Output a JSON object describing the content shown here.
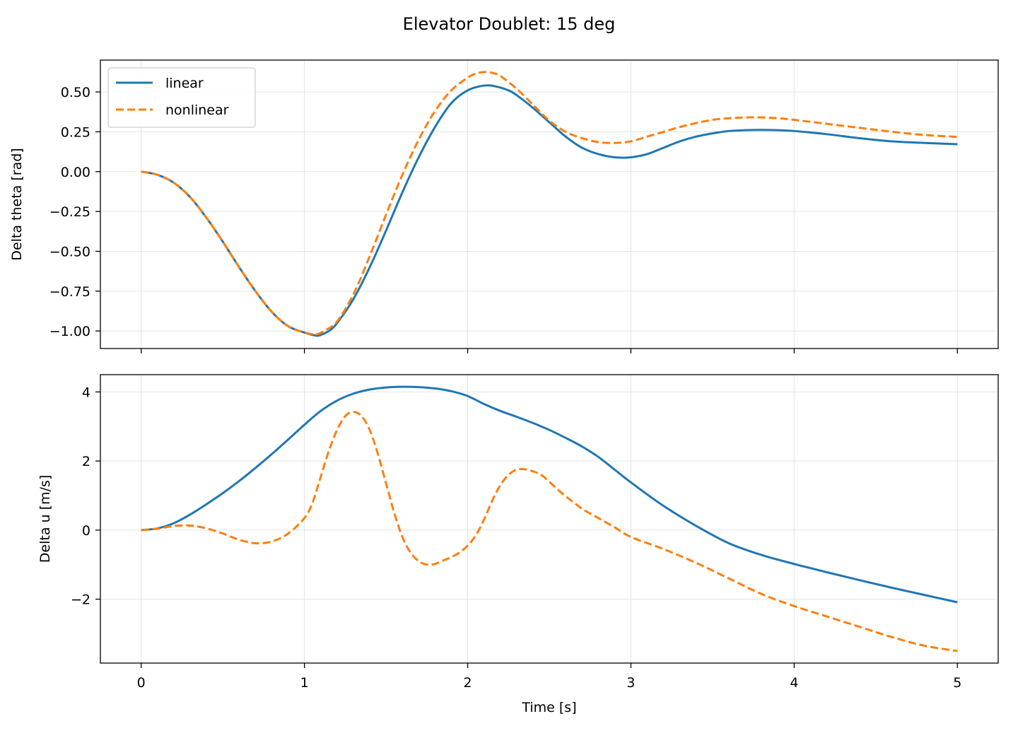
{
  "title": "Elevator Doublet: 15 deg",
  "colors": {
    "linear": "#1f77b4",
    "nonlinear": "#ff7f0e",
    "grid": "#e3e3e3"
  },
  "chart_data": [
    {
      "type": "line",
      "panel": "top",
      "xlabel": "",
      "ylabel": "Delta theta [rad]",
      "xlim": [
        -0.25,
        5.25
      ],
      "ylim": [
        -1.11,
        0.7
      ],
      "xticks": [
        0,
        1,
        2,
        3,
        4,
        5
      ],
      "yticks": [
        0.5,
        0.25,
        0.0,
        -0.25,
        -0.5,
        -0.75,
        -1.0
      ],
      "ytick_labels": [
        "0.50",
        "0.25",
        "0.00",
        "−0.25",
        "−0.50",
        "−0.75",
        "−1.00"
      ],
      "grid": true,
      "legend": "top-left",
      "series": [
        {
          "name": "linear",
          "style": "solid",
          "x": [
            0,
            0.1,
            0.2,
            0.3,
            0.4,
            0.5,
            0.6,
            0.7,
            0.8,
            0.9,
            1.0,
            1.05,
            1.08,
            1.1,
            1.15,
            1.2,
            1.3,
            1.4,
            1.5,
            1.6,
            1.7,
            1.8,
            1.9,
            2.0,
            2.1,
            2.17,
            2.25,
            2.3,
            2.4,
            2.5,
            2.6,
            2.7,
            2.8,
            2.9,
            3.0,
            3.1,
            3.2,
            3.3,
            3.4,
            3.5,
            3.6,
            3.7,
            3.8,
            3.9,
            4.0,
            4.2,
            4.4,
            4.6,
            4.8,
            5.0
          ],
          "y": [
            0,
            -0.02,
            -0.07,
            -0.16,
            -0.29,
            -0.44,
            -0.6,
            -0.75,
            -0.88,
            -0.97,
            -1.01,
            -1.025,
            -1.03,
            -1.025,
            -1.0,
            -0.95,
            -0.8,
            -0.6,
            -0.37,
            -0.13,
            0.09,
            0.28,
            0.43,
            0.51,
            0.54,
            0.535,
            0.51,
            0.48,
            0.4,
            0.31,
            0.22,
            0.15,
            0.11,
            0.09,
            0.09,
            0.11,
            0.15,
            0.19,
            0.22,
            0.24,
            0.255,
            0.26,
            0.262,
            0.26,
            0.255,
            0.235,
            0.21,
            0.19,
            0.18,
            0.172
          ]
        },
        {
          "name": "nonlinear",
          "style": "dashed",
          "x": [
            0,
            0.1,
            0.2,
            0.3,
            0.4,
            0.5,
            0.6,
            0.7,
            0.8,
            0.9,
            1.0,
            1.05,
            1.08,
            1.12,
            1.2,
            1.3,
            1.4,
            1.5,
            1.6,
            1.7,
            1.8,
            1.9,
            2.0,
            2.05,
            2.1,
            2.15,
            2.2,
            2.3,
            2.4,
            2.5,
            2.6,
            2.7,
            2.8,
            2.9,
            3.0,
            3.1,
            3.2,
            3.3,
            3.4,
            3.5,
            3.6,
            3.7,
            3.8,
            3.9,
            4.0,
            4.2,
            4.4,
            4.6,
            4.8,
            5.0
          ],
          "y": [
            0,
            -0.02,
            -0.07,
            -0.16,
            -0.29,
            -0.44,
            -0.6,
            -0.75,
            -0.88,
            -0.97,
            -1.01,
            -1.02,
            -1.02,
            -1.0,
            -0.94,
            -0.77,
            -0.53,
            -0.27,
            -0.02,
            0.2,
            0.38,
            0.51,
            0.59,
            0.615,
            0.625,
            0.62,
            0.6,
            0.52,
            0.42,
            0.32,
            0.25,
            0.21,
            0.185,
            0.18,
            0.19,
            0.22,
            0.25,
            0.28,
            0.305,
            0.325,
            0.335,
            0.34,
            0.34,
            0.335,
            0.325,
            0.3,
            0.275,
            0.25,
            0.23,
            0.218
          ]
        }
      ]
    },
    {
      "type": "line",
      "panel": "bottom",
      "xlabel": "Time [s]",
      "ylabel": "Delta u [m/s]",
      "xlim": [
        -0.25,
        5.25
      ],
      "ylim": [
        -3.85,
        4.5
      ],
      "xticks": [
        0,
        1,
        2,
        3,
        4,
        5
      ],
      "xtick_labels": [
        "0",
        "1",
        "2",
        "3",
        "4",
        "5"
      ],
      "yticks": [
        4,
        2,
        0,
        -2
      ],
      "ytick_labels": [
        "4",
        "2",
        "0",
        "−2"
      ],
      "grid": true,
      "series": [
        {
          "name": "linear",
          "style": "solid",
          "x": [
            0,
            0.1,
            0.2,
            0.3,
            0.4,
            0.5,
            0.6,
            0.7,
            0.8,
            0.9,
            1.0,
            1.1,
            1.2,
            1.3,
            1.4,
            1.5,
            1.6,
            1.7,
            1.8,
            1.9,
            2.0,
            2.1,
            2.2,
            2.3,
            2.4,
            2.5,
            2.6,
            2.7,
            2.8,
            2.9,
            3.0,
            3.2,
            3.4,
            3.6,
            3.8,
            4.0,
            4.2,
            4.4,
            4.6,
            4.8,
            5.0
          ],
          "y": [
            0,
            0.05,
            0.2,
            0.45,
            0.75,
            1.07,
            1.42,
            1.8,
            2.2,
            2.62,
            3.05,
            3.45,
            3.75,
            3.95,
            4.07,
            4.13,
            4.15,
            4.14,
            4.1,
            4.02,
            3.88,
            3.65,
            3.45,
            3.28,
            3.1,
            2.9,
            2.67,
            2.42,
            2.12,
            1.75,
            1.38,
            0.7,
            0.12,
            -0.38,
            -0.72,
            -0.98,
            -1.22,
            -1.45,
            -1.67,
            -1.88,
            -2.09
          ]
        },
        {
          "name": "nonlinear",
          "style": "dashed",
          "x": [
            0,
            0.1,
            0.2,
            0.3,
            0.4,
            0.5,
            0.6,
            0.7,
            0.8,
            0.9,
            1.0,
            1.05,
            1.1,
            1.15,
            1.2,
            1.25,
            1.3,
            1.35,
            1.4,
            1.45,
            1.5,
            1.55,
            1.6,
            1.65,
            1.7,
            1.75,
            1.8,
            1.85,
            1.9,
            1.95,
            2.0,
            2.05,
            2.1,
            2.15,
            2.2,
            2.25,
            2.3,
            2.35,
            2.4,
            2.45,
            2.5,
            2.55,
            2.6,
            2.65,
            2.7,
            2.75,
            2.8,
            2.9,
            3.0,
            3.2,
            3.4,
            3.6,
            3.8,
            4.0,
            4.2,
            4.4,
            4.6,
            4.8,
            5.0
          ],
          "y": [
            0,
            0.04,
            0.12,
            0.13,
            0.05,
            -0.1,
            -0.28,
            -0.38,
            -0.33,
            -0.1,
            0.35,
            0.8,
            1.55,
            2.3,
            2.9,
            3.3,
            3.42,
            3.3,
            2.9,
            2.2,
            1.35,
            0.5,
            -0.2,
            -0.65,
            -0.9,
            -1.0,
            -0.98,
            -0.88,
            -0.78,
            -0.65,
            -0.45,
            -0.15,
            0.3,
            0.85,
            1.3,
            1.6,
            1.75,
            1.76,
            1.7,
            1.6,
            1.4,
            1.18,
            0.98,
            0.8,
            0.62,
            0.48,
            0.35,
            0.08,
            -0.2,
            -0.55,
            -0.95,
            -1.4,
            -1.85,
            -2.2,
            -2.5,
            -2.8,
            -3.1,
            -3.35,
            -3.5
          ]
        }
      ]
    }
  ]
}
